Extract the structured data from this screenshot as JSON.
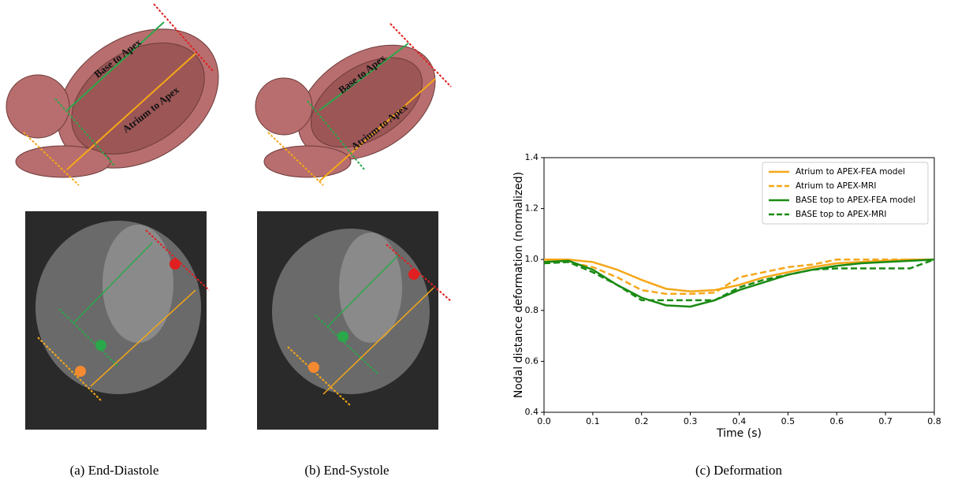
{
  "panels": [
    {
      "caption": "(a) End-Diastole",
      "labels": [
        "Base to Apex",
        "Atrium to Apex"
      ]
    },
    {
      "caption": "(b) End-Systole",
      "labels": [
        "Base to Apex",
        "Atrium to Apex"
      ]
    }
  ],
  "chart_caption": "(c) Deformation",
  "chart_data": {
    "type": "line",
    "xlabel": "Time (s)",
    "ylabel": "Nodal distance deformation (normalized)",
    "x": [
      0,
      0.05,
      0.1,
      0.15,
      0.2,
      0.25,
      0.3,
      0.35,
      0.4,
      0.45,
      0.5,
      0.55,
      0.6,
      0.65,
      0.7,
      0.75,
      0.8
    ],
    "xlim": [
      0,
      0.8
    ],
    "xticks": [
      {
        "value": 0,
        "label": "0.0"
      },
      0.1,
      0.2,
      0.3,
      0.4,
      0.5,
      0.6,
      0.7,
      0.8
    ],
    "ylim": [
      0.4,
      1.4
    ],
    "yticks": [
      0.4,
      0.6,
      0.8,
      {
        "value": 1,
        "label": "1.0"
      },
      1.2,
      1.4
    ],
    "legend": "upper right",
    "series": [
      {
        "name": "Atrium to APEX-FEA model",
        "color": "#f5a718",
        "dash": false,
        "values": [
          1.0,
          1.0,
          0.99,
          0.96,
          0.92,
          0.885,
          0.875,
          0.88,
          0.9,
          0.93,
          0.95,
          0.97,
          0.985,
          0.99,
          0.995,
          1.0,
          1.0
        ]
      },
      {
        "name": "Atrium to APEX-MRI",
        "color": "#f5a718",
        "dash": true,
        "values": [
          1.0,
          0.99,
          0.97,
          0.93,
          0.88,
          0.865,
          0.865,
          0.87,
          0.93,
          0.95,
          0.97,
          0.98,
          1.0,
          1.0,
          1.0,
          1.0,
          1.0
        ]
      },
      {
        "name": "BASE top to APEX-FEA model",
        "color": "#1a8a12",
        "dash": false,
        "values": [
          0.99,
          0.995,
          0.96,
          0.9,
          0.85,
          0.82,
          0.815,
          0.84,
          0.88,
          0.91,
          0.94,
          0.96,
          0.975,
          0.985,
          0.99,
          0.995,
          1.0
        ]
      },
      {
        "name": "BASE top to APEX-MRI",
        "color": "#1a8a12",
        "dash": true,
        "values": [
          0.985,
          0.99,
          0.95,
          0.9,
          0.84,
          0.84,
          0.84,
          0.84,
          0.89,
          0.92,
          0.94,
          0.96,
          0.965,
          0.965,
          0.965,
          0.965,
          1.0
        ]
      }
    ]
  }
}
